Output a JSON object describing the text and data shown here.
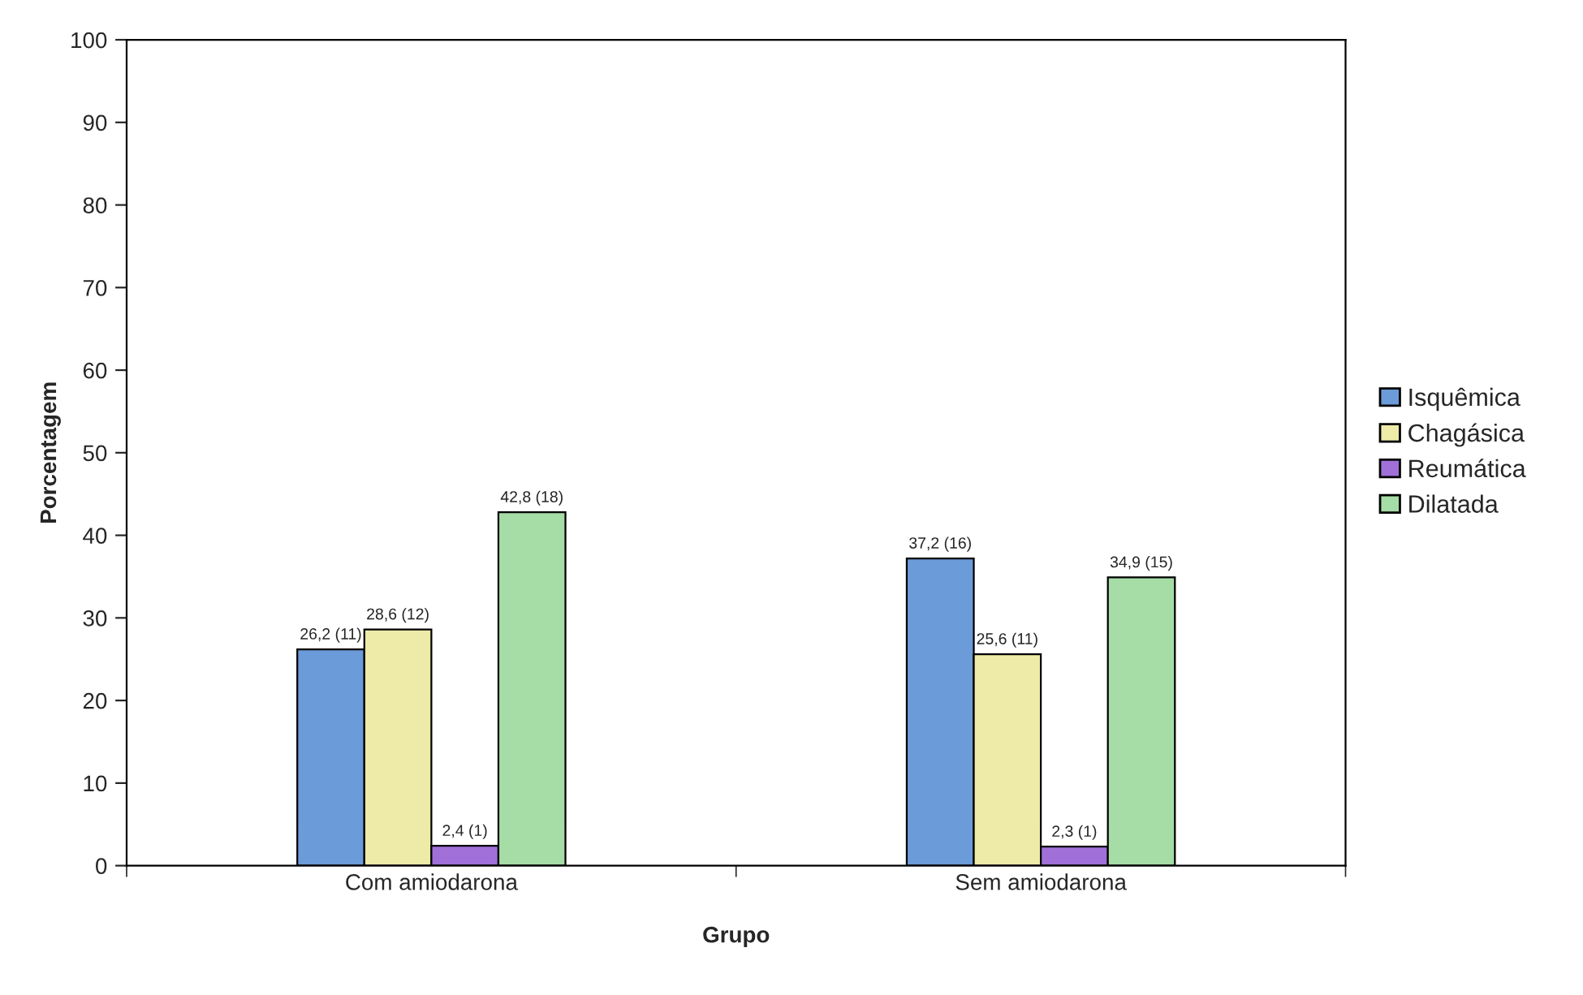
{
  "chart_data": {
    "type": "bar",
    "xlabel": "Grupo",
    "ylabel": "Porcentagem",
    "categories": [
      "Com amiodarona",
      "Sem amiodarona"
    ],
    "series": [
      {
        "name": "Isquêmica",
        "color": "#6b9bd8",
        "values": [
          26.2,
          37.2
        ],
        "value_labels": [
          "26,2 (11)",
          "37,2 (16)"
        ]
      },
      {
        "name": "Chagásica",
        "color": "#eeeaa8",
        "values": [
          28.6,
          25.6
        ],
        "value_labels": [
          "28,6 (12)",
          "25,6 (11)"
        ]
      },
      {
        "name": "Reumática",
        "color": "#a070d8",
        "values": [
          2.4,
          2.3
        ],
        "value_labels": [
          "2,4 (1)",
          "2,3 (1)"
        ]
      },
      {
        "name": "Dilatada",
        "color": "#a6dca6",
        "values": [
          42.8,
          34.9
        ],
        "value_labels": [
          "42,8 (18)",
          "34,9 (15)"
        ]
      }
    ],
    "ylim": [
      0,
      100
    ],
    "yticks": [
      0,
      10,
      20,
      30,
      40,
      50,
      60,
      70,
      80,
      90,
      100
    ],
    "grid": false,
    "legend": "right"
  }
}
